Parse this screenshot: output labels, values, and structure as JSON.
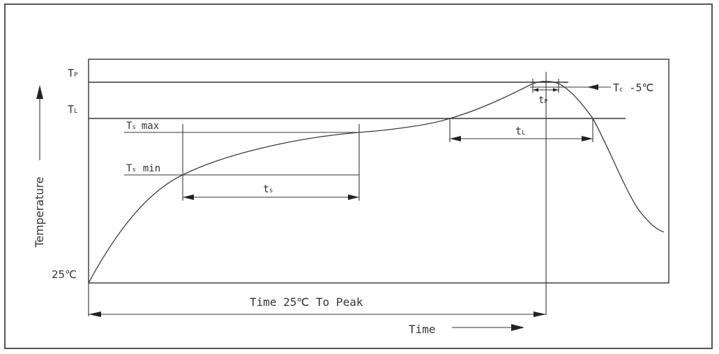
{
  "labels": {
    "tp": "T",
    "tp_sub": "P",
    "tl": "T",
    "tl_sub": "L",
    "ts_max": "T",
    "ts_max_sub": "s",
    "ts_max_suffix": "max",
    "ts_min": "T",
    "ts_min_sub": "s",
    "ts_min_suffix": "min",
    "tc": "T",
    "tc_sub": "c",
    "tc_suffix": "-5℃",
    "start_temp": "25℃",
    "ts_period": "t",
    "ts_period_sub": "s",
    "tl_period": "t",
    "tl_period_sub": "L",
    "tp_period": "t",
    "tp_period_sub": "P",
    "time_to_peak": "Time 25℃ To Peak",
    "y_axis": "Temperature",
    "x_axis": "Time"
  },
  "colors": {
    "stroke": "#333333",
    "text": "#333333",
    "frame": "#555555",
    "background": "#ffffff"
  }
}
